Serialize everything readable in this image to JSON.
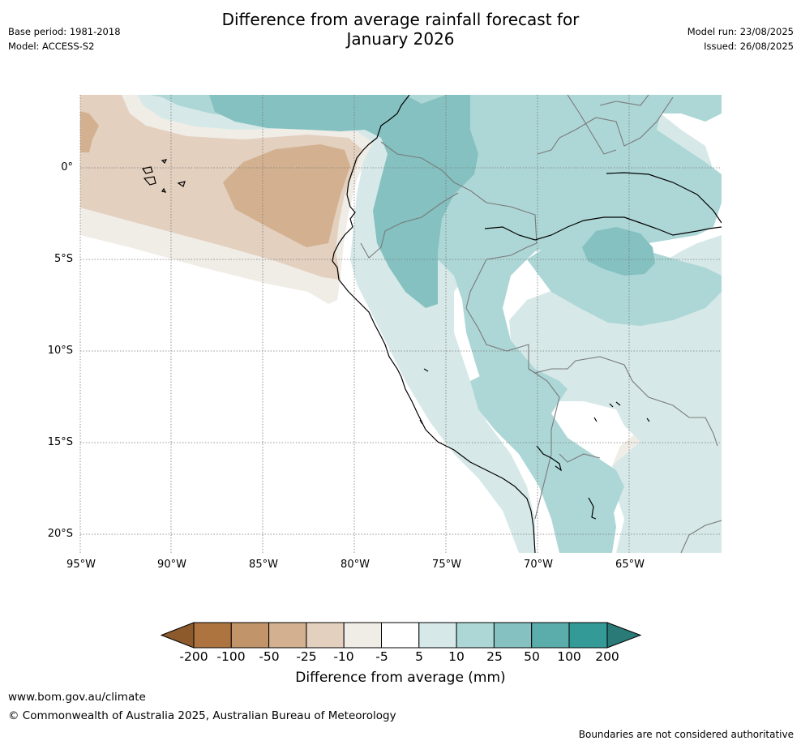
{
  "header": {
    "title_line1": "Difference from average rainfall forecast for",
    "title_line2": "January 2026",
    "base_period": "Base period: 1981-2018",
    "model": "Model: ACCESS-S2",
    "model_run": "Model run: 23/08/2025",
    "issued": "Issued: 26/08/2025"
  },
  "map": {
    "lat_labels": [
      "0°",
      "5°S",
      "10°S",
      "15°S",
      "20°S"
    ],
    "lon_labels": [
      "95°W",
      "90°W",
      "85°W",
      "80°W",
      "75°W",
      "70°W",
      "65°W"
    ]
  },
  "legend": {
    "label": "Difference from average (mm)",
    "ticks": [
      "-200",
      "-100",
      "-50",
      "-25",
      "-10",
      "-5",
      "5",
      "10",
      "25",
      "50",
      "100",
      "200"
    ],
    "colors": {
      "lt_-200": "#8c5a2b",
      "-200_-100": "#ad743f",
      "-100_-50": "#c29469",
      "-50_-25": "#d3b190",
      "-25_-10": "#e3d0bf",
      "-10_-5": "#f0ece6",
      "-5_5": "#ffffff",
      "5_10": "#d6e9e8",
      "10_25": "#add7d6",
      "25_50": "#84c1c0",
      "50_100": "#5aadab",
      "100_200": "#339a98",
      "gt_200": "#2a7a78"
    }
  },
  "footer": {
    "url": "www.bom.gov.au/climate",
    "copyright": "© Commonwealth of Australia 2025, Australian Bureau of Meteorology",
    "disclaimer": "Boundaries are not considered authoritative"
  }
}
